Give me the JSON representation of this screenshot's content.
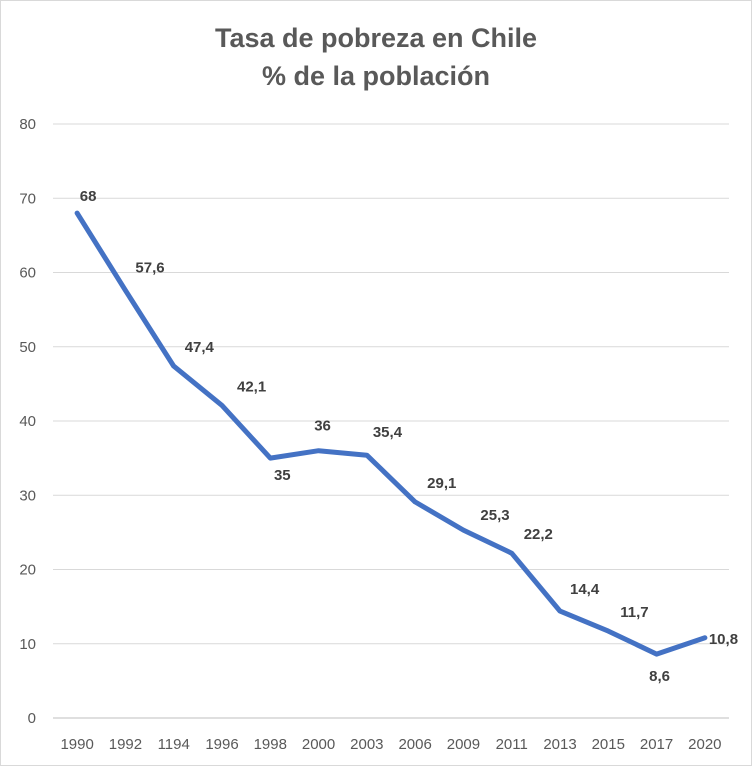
{
  "chart_data": {
    "type": "line",
    "title": "Tasa de pobreza en Chile",
    "subtitle": "% de la población",
    "categories": [
      "1990",
      "1992",
      "1194",
      "1996",
      "1998",
      "2000",
      "2003",
      "2006",
      "2009",
      "2011",
      "2013",
      "2015",
      "2017",
      "2020"
    ],
    "series": [
      {
        "values": [
          68,
          57.6,
          47.4,
          42.1,
          35,
          36,
          35.4,
          29.1,
          25.3,
          22.2,
          14.4,
          11.7,
          8.6,
          10.8
        ],
        "labels": [
          "68",
          "57,6",
          "47,4",
          "42,1",
          "35",
          "36",
          "35,4",
          "29,1",
          "25,3",
          "22,2",
          "14,4",
          "11,7",
          "8,6",
          "10,8"
        ],
        "color": "#4472c4"
      }
    ],
    "y_ticks": [
      "0",
      "10",
      "20",
      "30",
      "40",
      "50",
      "60",
      "70",
      "80"
    ],
    "ylim": [
      0,
      80
    ],
    "grid": true,
    "legend": "none"
  }
}
